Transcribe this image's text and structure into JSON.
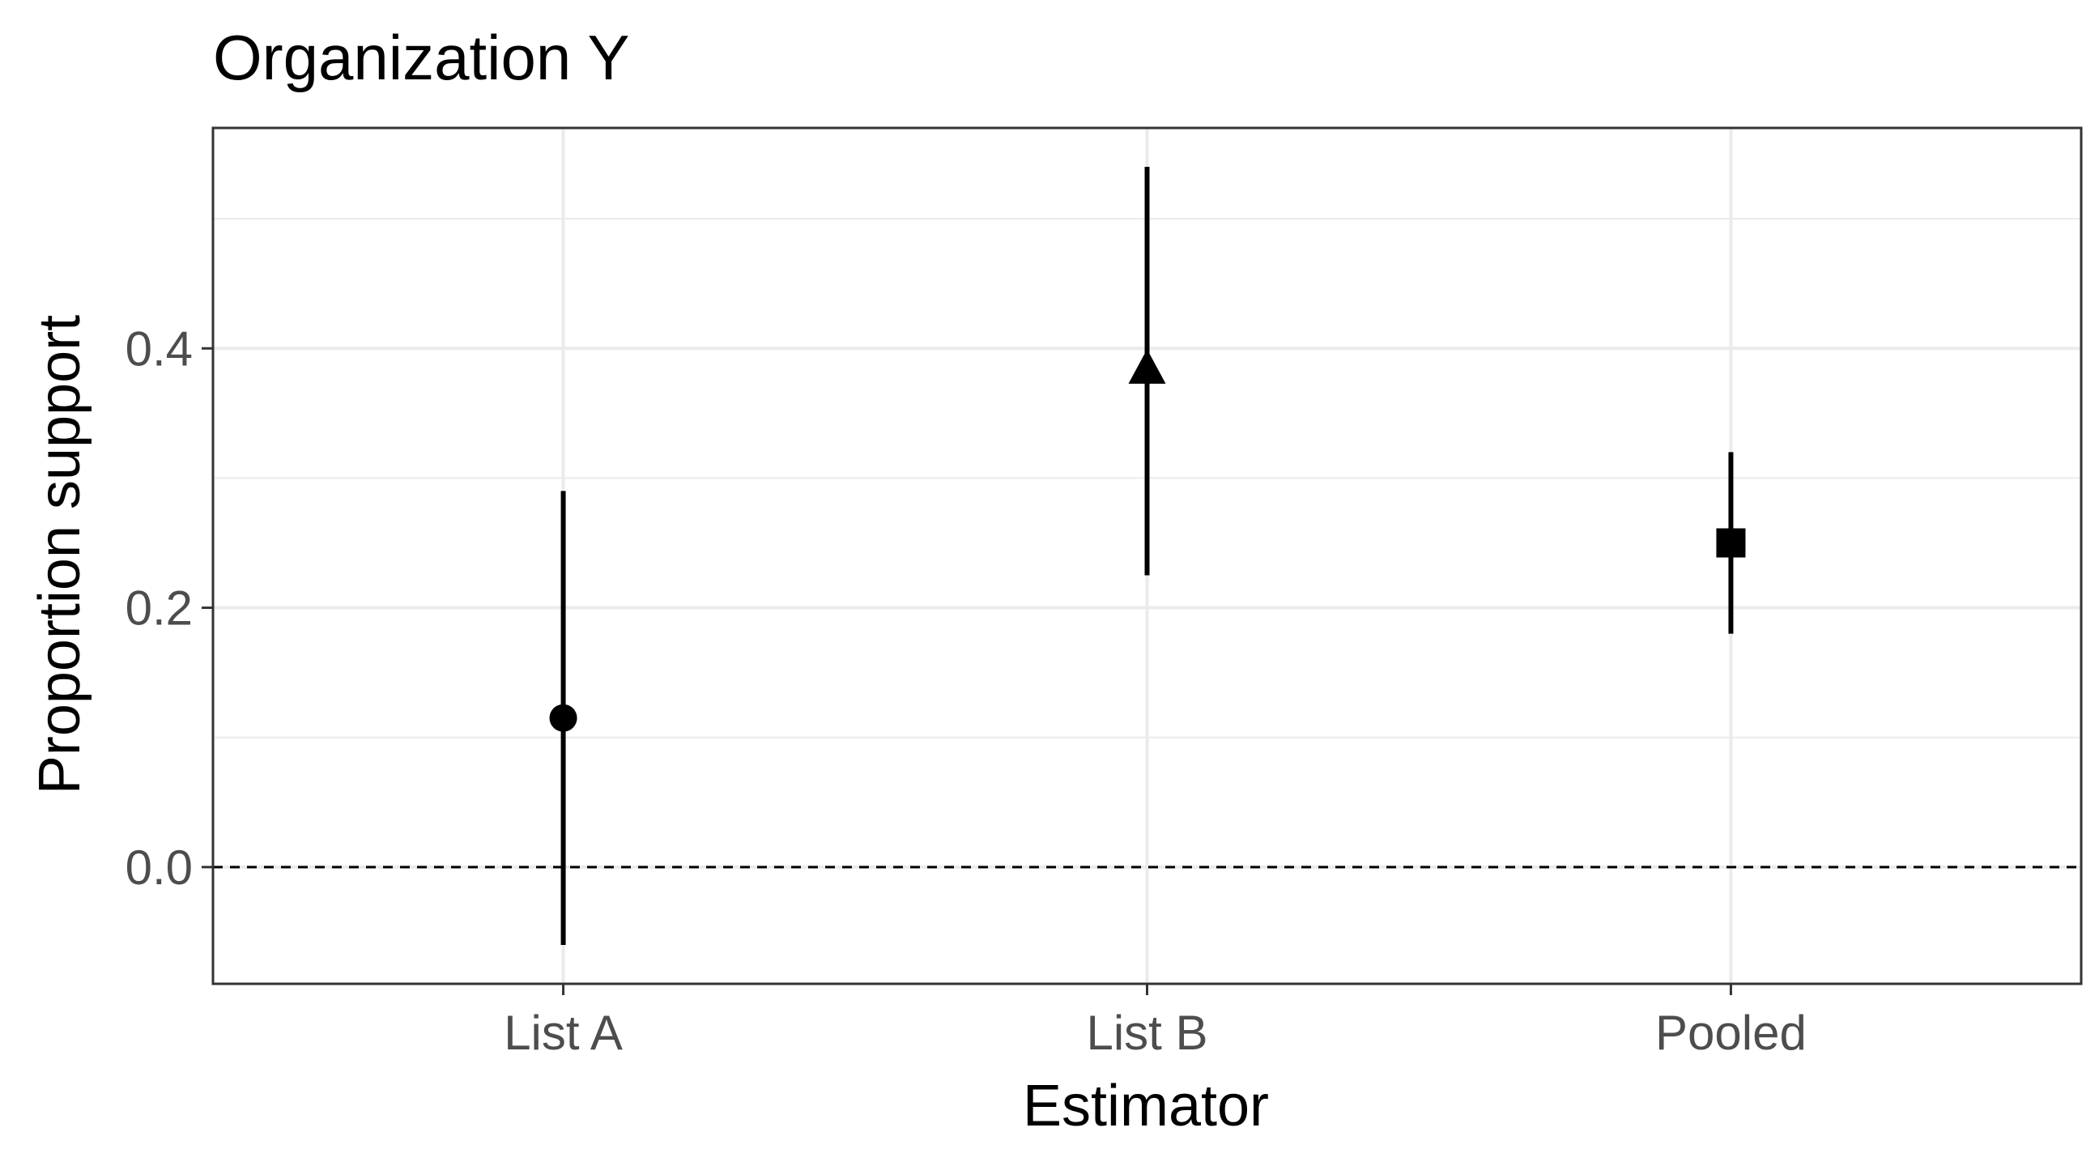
{
  "chart_data": {
    "type": "scatter",
    "title": "Organization Y",
    "xlabel": "Estimator",
    "ylabel": "Proportion support",
    "categories": [
      "List A",
      "List B",
      "Pooled"
    ],
    "points": [
      {
        "category": "List A",
        "estimate": 0.115,
        "lower": -0.06,
        "upper": 0.29,
        "shape": "circle"
      },
      {
        "category": "List B",
        "estimate": 0.385,
        "lower": 0.225,
        "upper": 0.54,
        "shape": "triangle"
      },
      {
        "category": "Pooled",
        "estimate": 0.25,
        "lower": 0.18,
        "upper": 0.32,
        "shape": "square"
      }
    ],
    "ylim": [
      -0.09,
      0.57
    ],
    "yticks": [
      0.0,
      0.2,
      0.4
    ],
    "ytick_labels": [
      "0.0",
      "0.2",
      "0.4"
    ],
    "reference_line": {
      "y": 0,
      "style": "dashed"
    },
    "grid": true,
    "legend": "none",
    "colors": {
      "marks": "#000000",
      "grid": "#ebebeb",
      "panel_border": "#333333",
      "tick_text": "#4d4d4d"
    }
  }
}
